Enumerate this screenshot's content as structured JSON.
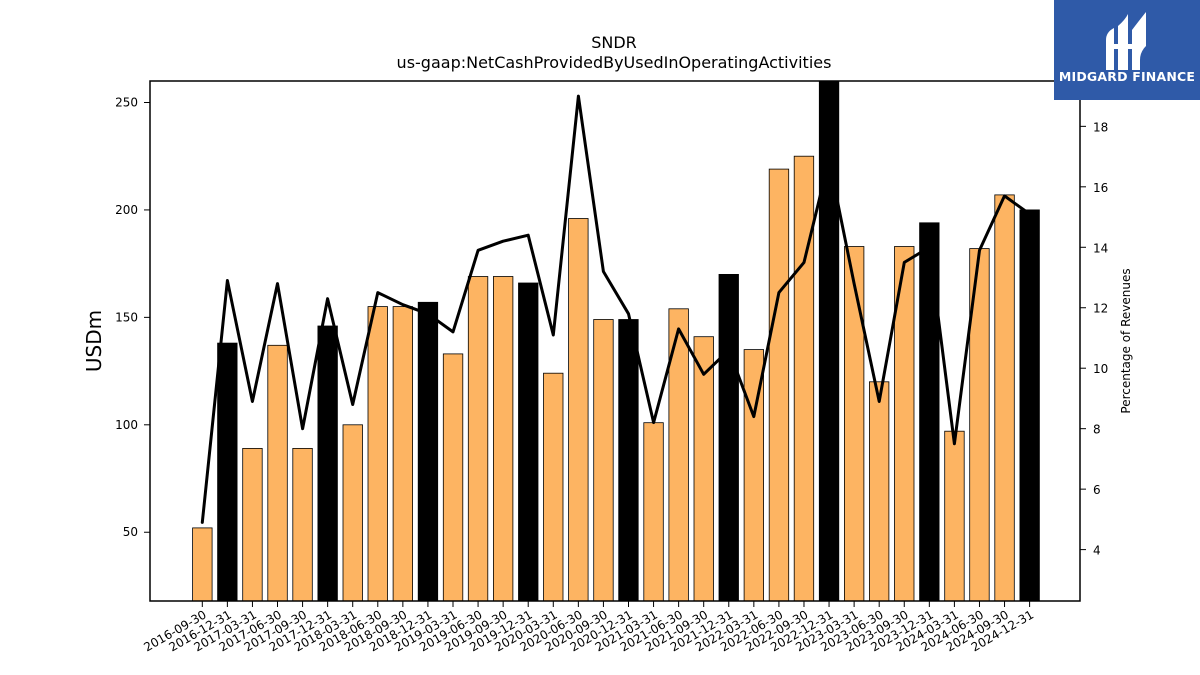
{
  "chart_data": {
    "type": "bar",
    "title": "SNDR",
    "subtitle": "us-gaap:NetCashProvidedByUsedInOperatingActivities",
    "ylabel": "USDm",
    "y2label": "Percentage of Revenues",
    "ylim": [
      18,
      260
    ],
    "y2lim": [
      2.3,
      19.5
    ],
    "yticks": [
      50,
      100,
      150,
      200,
      250
    ],
    "y2ticks": [
      4,
      6,
      8,
      10,
      12,
      14,
      16,
      18
    ],
    "categories": [
      "2016-09-30",
      "2016-12-31",
      "2017-03-31",
      "2017-06-30",
      "2017-09-30",
      "2017-12-31",
      "2018-03-31",
      "2018-06-30",
      "2018-09-30",
      "2018-12-31",
      "2019-03-31",
      "2019-06-30",
      "2019-09-30",
      "2019-12-31",
      "2020-03-31",
      "2020-06-30",
      "2020-09-30",
      "2020-12-31",
      "2021-03-31",
      "2021-06-30",
      "2021-09-30",
      "2021-12-31",
      "2022-03-31",
      "2022-06-30",
      "2022-09-30",
      "2022-12-31",
      "2023-03-31",
      "2023-06-30",
      "2023-09-30",
      "2023-12-31",
      "2024-03-31",
      "2024-06-30",
      "2024-09-30",
      "2024-12-31"
    ],
    "series": [
      {
        "kind": "bar",
        "values": [
          52,
          138,
          89,
          137,
          89,
          146,
          100,
          155,
          155,
          157,
          133,
          169,
          169,
          166,
          124,
          196,
          149,
          149,
          101,
          154,
          141,
          170,
          135,
          219,
          225,
          260,
          183,
          120,
          183,
          194,
          97,
          182,
          207,
          200
        ],
        "fiscal_year_end_color": "#000000",
        "quarter_color": "#fdb462",
        "highlight": [
          false,
          true,
          false,
          false,
          false,
          true,
          false,
          false,
          false,
          true,
          false,
          false,
          false,
          true,
          false,
          false,
          false,
          true,
          false,
          false,
          false,
          true,
          false,
          false,
          false,
          true,
          false,
          false,
          false,
          true,
          false,
          false,
          false,
          true
        ]
      },
      {
        "kind": "line",
        "axis": "right",
        "color": "#000000",
        "values": [
          4.9,
          12.9,
          8.9,
          12.8,
          8.0,
          12.3,
          8.8,
          12.5,
          12.1,
          11.8,
          11.2,
          13.9,
          14.2,
          14.4,
          11.1,
          19.0,
          13.2,
          11.8,
          8.2,
          11.3,
          9.8,
          10.6,
          8.4,
          12.5,
          13.5,
          16.9,
          12.8,
          8.9,
          13.5,
          14.0,
          7.5,
          13.9,
          15.7,
          15.1
        ]
      }
    ]
  },
  "logo": {
    "text": "MIDGARD FINANCE",
    "bg_color": "#2f5aa8"
  }
}
